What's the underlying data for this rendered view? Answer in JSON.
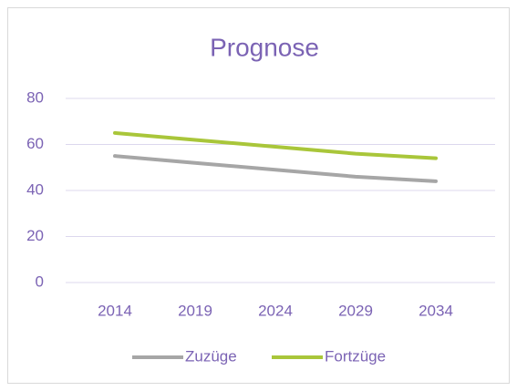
{
  "chart_data": {
    "type": "line",
    "title": "Prognose",
    "categories": [
      "2014",
      "2019",
      "2024",
      "2029",
      "2034"
    ],
    "series": [
      {
        "name": "Zuzüge",
        "color": "#a6a6a6",
        "values": [
          55,
          52,
          49,
          46,
          44
        ]
      },
      {
        "name": "Fortzüge",
        "color": "#a9c63a",
        "values": [
          65,
          62,
          59,
          56,
          54
        ]
      }
    ],
    "ylim": [
      0,
      80
    ],
    "yticks": [
      0,
      20,
      40,
      60,
      80
    ],
    "grid": true,
    "legend": "bottom"
  }
}
